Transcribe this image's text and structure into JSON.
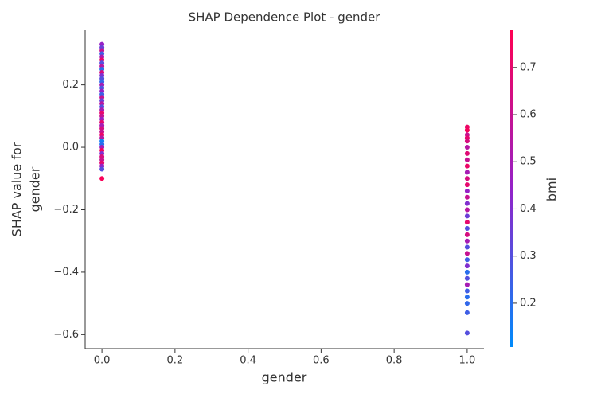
{
  "chart_data": {
    "type": "scatter",
    "title": "SHAP Dependence Plot - gender",
    "x_label": "gender",
    "y_label": [
      "SHAP value for",
      "gender"
    ],
    "colorbar_label": "bmi",
    "colormap": [
      "#008bfb",
      "#9422c8",
      "#ff0052"
    ],
    "xlim": [
      -0.046,
      1.046
    ],
    "ylim": [
      -0.645,
      0.375
    ],
    "clim": [
      0.107,
      0.779
    ],
    "xticks": [
      {
        "value": 0,
        "label": "0.0"
      },
      0.2,
      0.4,
      0.6,
      0.8,
      {
        "value": 1,
        "label": "1.0"
      }
    ],
    "yticks": [
      {
        "value": -0.6,
        "label": "−0.6"
      },
      {
        "value": -0.4,
        "label": "−0.4"
      },
      {
        "value": -0.2,
        "label": "−0.2"
      },
      {
        "value": 0,
        "label": "0.0"
      },
      0.2
    ],
    "cticks": [
      0.2,
      0.3,
      0.4,
      0.5,
      0.6,
      0.7
    ],
    "series": [
      {
        "x": [
          0,
          0,
          0,
          0,
          0,
          0,
          0,
          0,
          0,
          0,
          0,
          0,
          0,
          0,
          0,
          0,
          0,
          0,
          0,
          0,
          0,
          0,
          0,
          0,
          0,
          0,
          0,
          0,
          0,
          0,
          0,
          0,
          0,
          0,
          0,
          0,
          0,
          0,
          0,
          0,
          0,
          0,
          1,
          1,
          1,
          1,
          1,
          1,
          1,
          1,
          1,
          1,
          1,
          1,
          1,
          1,
          1,
          1,
          1,
          1,
          1,
          1,
          1,
          1,
          1,
          1,
          1,
          1,
          1,
          1,
          1,
          1,
          1,
          1,
          1
        ],
        "y": [
          0.33,
          0.32,
          0.31,
          0.3,
          0.29,
          0.28,
          0.27,
          0.26,
          0.25,
          0.24,
          0.23,
          0.22,
          0.21,
          0.2,
          0.19,
          0.18,
          0.17,
          0.16,
          0.15,
          0.14,
          0.13,
          0.12,
          0.11,
          0.1,
          0.09,
          0.08,
          0.07,
          0.06,
          0.05,
          0.04,
          0.03,
          0.02,
          0.01,
          0.0,
          -0.01,
          -0.02,
          -0.03,
          -0.04,
          -0.05,
          -0.06,
          -0.07,
          -0.1,
          0.065,
          0.055,
          0.04,
          0.03,
          0.02,
          0.0,
          -0.02,
          -0.04,
          -0.06,
          -0.08,
          -0.1,
          -0.12,
          -0.14,
          -0.16,
          -0.18,
          -0.2,
          -0.22,
          -0.24,
          -0.26,
          -0.28,
          -0.3,
          -0.32,
          -0.34,
          -0.36,
          -0.38,
          -0.4,
          -0.42,
          -0.44,
          -0.46,
          -0.48,
          -0.5,
          -0.53,
          -0.595
        ],
        "color_values": [
          0.45,
          0.35,
          0.6,
          0.25,
          0.5,
          0.7,
          0.3,
          0.55,
          0.2,
          0.65,
          0.4,
          0.3,
          0.22,
          0.5,
          0.28,
          0.45,
          0.25,
          0.6,
          0.35,
          0.55,
          0.3,
          0.5,
          0.7,
          0.6,
          0.45,
          0.7,
          0.5,
          0.65,
          0.6,
          0.72,
          0.55,
          0.15,
          0.2,
          0.5,
          0.75,
          0.4,
          0.65,
          0.6,
          0.7,
          0.45,
          0.3,
          0.76,
          0.72,
          0.75,
          0.6,
          0.7,
          0.65,
          0.55,
          0.68,
          0.6,
          0.72,
          0.5,
          0.65,
          0.7,
          0.45,
          0.6,
          0.4,
          0.55,
          0.35,
          0.7,
          0.3,
          0.65,
          0.5,
          0.3,
          0.6,
          0.25,
          0.4,
          0.2,
          0.3,
          0.5,
          0.25,
          0.2,
          0.22,
          0.25,
          0.3
        ]
      }
    ]
  }
}
